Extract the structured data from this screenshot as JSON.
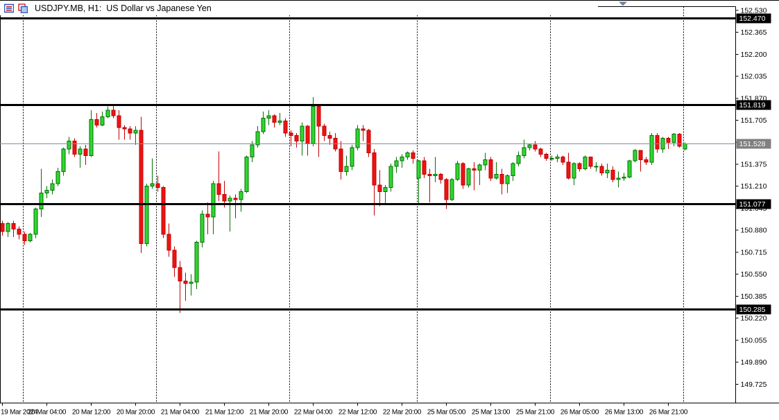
{
  "window": {
    "title": "USDJPY.MB, H1:  US Dollar vs Japanese Yen",
    "title_icons": [
      "indicator-list-icon",
      "templates-icon"
    ],
    "collapse_arrow": "down-triangle"
  },
  "chart_data": {
    "type": "candlestick",
    "symbol": "USDJPY.MB",
    "timeframe": "H1",
    "description": "US Dollar vs Japanese Yen",
    "y_range_visible": [
      149.58,
      152.56
    ],
    "price_axis": {
      "tick_labels": [
        "152.530",
        "152.365",
        "152.200",
        "152.035",
        "151.870",
        "151.705",
        "151.540",
        "151.375",
        "151.210",
        "151.045",
        "150.880",
        "150.715",
        "150.550",
        "150.385",
        "150.220",
        "150.055",
        "149.890",
        "149.725"
      ],
      "badges": [
        {
          "value": "152.470",
          "kind": "level"
        },
        {
          "value": "151.819",
          "kind": "level"
        },
        {
          "value": "151.528",
          "kind": "bid"
        },
        {
          "value": "151.077",
          "kind": "level"
        },
        {
          "value": "150.285",
          "kind": "level"
        }
      ]
    },
    "levels": [
      152.47,
      151.819,
      151.077,
      150.285
    ],
    "current_price": 151.528,
    "time_axis": {
      "labels": [
        {
          "bar": 0,
          "text": "19 Mar 2024"
        },
        {
          "bar": 8,
          "text": "20 Mar 04:00"
        },
        {
          "bar": 16,
          "text": "20 Mar 12:00"
        },
        {
          "bar": 24,
          "text": "20 Mar 20:00"
        },
        {
          "bar": 32,
          "text": "21 Mar 04:00"
        },
        {
          "bar": 40,
          "text": "21 Mar 12:00"
        },
        {
          "bar": 48,
          "text": "21 Mar 20:00"
        },
        {
          "bar": 56,
          "text": "22 Mar 04:00"
        },
        {
          "bar": 64,
          "text": "22 Mar 12:00"
        },
        {
          "bar": 72,
          "text": "22 Mar 20:00"
        },
        {
          "bar": 80,
          "text": "25 Mar 05:00"
        },
        {
          "bar": 88,
          "text": "25 Mar 13:00"
        },
        {
          "bar": 96,
          "text": "25 Mar 21:00"
        },
        {
          "bar": 104,
          "text": "26 Mar 05:00"
        },
        {
          "bar": 112,
          "text": "26 Mar 13:00"
        },
        {
          "bar": 120,
          "text": "26 Mar 21:00"
        }
      ]
    },
    "day_separator_bars": [
      4,
      28,
      52,
      75,
      99,
      123
    ],
    "candles": [
      [
        150.93,
        150.95,
        150.84,
        150.87
      ],
      [
        150.87,
        150.94,
        150.83,
        150.93
      ],
      [
        150.93,
        150.95,
        150.83,
        150.89
      ],
      [
        150.89,
        150.91,
        150.81,
        150.85
      ],
      [
        150.85,
        150.87,
        150.77,
        150.8
      ],
      [
        150.8,
        150.86,
        150.79,
        150.85
      ],
      [
        150.85,
        151.05,
        150.82,
        151.04
      ],
      [
        151.04,
        151.34,
        150.98,
        151.16
      ],
      [
        151.16,
        151.21,
        151.12,
        151.18
      ],
      [
        151.18,
        151.26,
        151.15,
        151.23
      ],
      [
        151.23,
        151.35,
        151.21,
        151.32
      ],
      [
        151.32,
        151.5,
        151.29,
        151.49
      ],
      [
        151.49,
        151.58,
        151.45,
        151.55
      ],
      [
        151.55,
        151.57,
        151.43,
        151.45
      ],
      [
        151.45,
        151.51,
        151.35,
        151.49
      ],
      [
        151.49,
        151.52,
        151.37,
        151.44
      ],
      [
        151.44,
        151.78,
        151.43,
        151.71
      ],
      [
        151.71,
        151.76,
        151.65,
        151.67
      ],
      [
        151.67,
        151.77,
        151.66,
        151.73
      ],
      [
        151.73,
        151.81,
        151.72,
        151.78
      ],
      [
        151.78,
        151.82,
        151.72,
        151.74
      ],
      [
        151.74,
        151.78,
        151.56,
        151.65
      ],
      [
        151.65,
        151.67,
        151.56,
        151.64
      ],
      [
        151.64,
        151.66,
        151.56,
        151.61
      ],
      [
        151.61,
        151.66,
        151.52,
        151.63
      ],
      [
        151.63,
        151.73,
        150.71,
        150.78
      ],
      [
        150.78,
        151.23,
        150.76,
        151.21
      ],
      [
        151.21,
        151.42,
        151.19,
        151.23
      ],
      [
        151.23,
        151.29,
        151.17,
        151.2
      ],
      [
        151.2,
        151.21,
        150.82,
        150.85
      ],
      [
        150.85,
        150.93,
        150.68,
        150.73
      ],
      [
        150.73,
        150.76,
        150.53,
        150.6
      ],
      [
        150.6,
        150.65,
        150.26,
        150.5
      ],
      [
        150.5,
        150.56,
        150.35,
        150.48
      ],
      [
        150.48,
        150.55,
        150.39,
        150.49
      ],
      [
        150.49,
        150.8,
        150.44,
        150.79
      ],
      [
        150.79,
        151.03,
        150.75,
        151.0
      ],
      [
        151.0,
        151.09,
        150.85,
        150.98
      ],
      [
        150.98,
        151.25,
        150.85,
        151.23
      ],
      [
        151.23,
        151.47,
        151.1,
        151.15
      ],
      [
        151.15,
        151.25,
        151.05,
        151.1
      ],
      [
        151.1,
        151.14,
        150.87,
        151.12
      ],
      [
        151.12,
        151.15,
        150.97,
        151.11
      ],
      [
        151.11,
        151.19,
        151.02,
        151.17
      ],
      [
        151.17,
        151.44,
        151.16,
        151.43
      ],
      [
        151.43,
        151.55,
        151.39,
        151.52
      ],
      [
        151.52,
        151.66,
        151.5,
        151.62
      ],
      [
        151.62,
        151.77,
        151.6,
        151.72
      ],
      [
        151.72,
        151.78,
        151.67,
        151.74
      ],
      [
        151.74,
        151.75,
        151.65,
        151.69
      ],
      [
        151.69,
        151.76,
        151.67,
        151.7
      ],
      [
        151.7,
        151.72,
        151.58,
        151.61
      ],
      [
        151.61,
        151.63,
        151.51,
        151.59
      ],
      [
        151.59,
        151.61,
        151.5,
        151.55
      ],
      [
        151.55,
        151.69,
        151.44,
        151.66
      ],
      [
        151.66,
        151.67,
        151.44,
        151.53
      ],
      [
        151.53,
        151.88,
        151.51,
        151.81
      ],
      [
        151.81,
        151.82,
        151.43,
        151.66
      ],
      [
        151.66,
        151.68,
        151.55,
        151.59
      ],
      [
        151.59,
        151.62,
        151.52,
        151.57
      ],
      [
        151.57,
        151.61,
        151.47,
        151.49
      ],
      [
        151.49,
        151.55,
        151.26,
        151.32
      ],
      [
        151.32,
        151.44,
        151.29,
        151.36
      ],
      [
        151.36,
        151.52,
        151.33,
        151.5
      ],
      [
        151.5,
        151.67,
        151.48,
        151.64
      ],
      [
        151.64,
        151.67,
        151.55,
        151.63
      ],
      [
        151.63,
        151.64,
        151.43,
        151.46
      ],
      [
        151.46,
        151.49,
        150.99,
        151.22
      ],
      [
        151.22,
        151.33,
        151.06,
        151.17
      ],
      [
        151.17,
        151.22,
        151.08,
        151.2
      ],
      [
        151.2,
        151.38,
        151.17,
        151.36
      ],
      [
        151.36,
        151.43,
        151.31,
        151.4
      ],
      [
        151.4,
        151.45,
        151.35,
        151.43
      ],
      [
        151.43,
        151.47,
        151.41,
        151.46
      ],
      [
        151.46,
        151.48,
        151.38,
        151.42
      ],
      [
        151.27,
        151.41,
        151.08,
        151.4
      ],
      [
        151.4,
        151.43,
        151.27,
        151.3
      ],
      [
        151.3,
        151.34,
        151.09,
        151.29
      ],
      [
        151.29,
        151.43,
        151.24,
        151.3
      ],
      [
        151.3,
        151.31,
        151.23,
        151.26
      ],
      [
        151.26,
        151.27,
        151.04,
        151.11
      ],
      [
        151.11,
        151.27,
        151.1,
        151.26
      ],
      [
        151.26,
        151.4,
        151.25,
        151.38
      ],
      [
        151.38,
        151.39,
        151.19,
        151.22
      ],
      [
        151.22,
        151.35,
        151.2,
        151.34
      ],
      [
        151.34,
        151.39,
        151.18,
        151.33
      ],
      [
        151.33,
        151.38,
        151.22,
        151.37
      ],
      [
        151.37,
        151.46,
        151.33,
        151.41
      ],
      [
        151.41,
        151.43,
        151.25,
        151.27
      ],
      [
        151.27,
        151.39,
        151.26,
        151.3
      ],
      [
        151.3,
        151.34,
        151.15,
        151.23
      ],
      [
        151.23,
        151.3,
        151.16,
        151.29
      ],
      [
        151.29,
        151.39,
        151.25,
        151.38
      ],
      [
        151.38,
        151.47,
        151.36,
        151.44
      ],
      [
        151.44,
        151.56,
        151.42,
        151.5
      ],
      [
        151.5,
        151.53,
        151.48,
        151.52
      ],
      [
        151.52,
        151.55,
        151.47,
        151.49
      ],
      [
        151.49,
        151.5,
        151.43,
        151.45
      ],
      [
        151.45,
        151.46,
        151.4,
        151.42
      ],
      [
        151.42,
        151.44,
        151.4,
        151.42
      ],
      [
        151.42,
        151.45,
        151.39,
        151.43
      ],
      [
        151.43,
        151.44,
        151.37,
        151.39
      ],
      [
        151.39,
        151.46,
        151.26,
        151.27
      ],
      [
        151.27,
        151.39,
        151.22,
        151.38
      ],
      [
        151.38,
        151.39,
        151.32,
        151.34
      ],
      [
        151.34,
        151.44,
        151.33,
        151.43
      ],
      [
        151.43,
        151.43,
        151.34,
        151.36
      ],
      [
        151.36,
        151.39,
        151.32,
        151.36
      ],
      [
        151.36,
        151.38,
        151.29,
        151.31
      ],
      [
        151.31,
        151.38,
        151.27,
        151.33
      ],
      [
        151.33,
        151.36,
        151.24,
        151.26
      ],
      [
        151.26,
        151.32,
        151.2,
        151.27
      ],
      [
        151.27,
        151.31,
        151.25,
        151.28
      ],
      [
        151.28,
        151.41,
        151.27,
        151.4
      ],
      [
        151.4,
        151.49,
        151.39,
        151.48
      ],
      [
        151.48,
        151.48,
        151.32,
        151.41
      ],
      [
        151.41,
        151.43,
        151.37,
        151.39
      ],
      [
        151.39,
        151.61,
        151.37,
        151.59
      ],
      [
        151.59,
        151.61,
        151.46,
        151.49
      ],
      [
        151.49,
        151.58,
        151.46,
        151.57
      ],
      [
        151.57,
        151.58,
        151.49,
        151.54
      ],
      [
        151.54,
        151.61,
        151.51,
        151.6
      ],
      [
        151.6,
        151.61,
        151.5,
        151.51
      ],
      [
        151.49,
        151.54,
        151.48,
        151.528
      ]
    ],
    "colors": {
      "background": "#FFFFFF",
      "frame": "#000000",
      "bull_fill": "#30D630",
      "bull_stroke": "#007000",
      "bear_fill": "#EC1414",
      "bear_stroke": "#C00000",
      "level_line": "#000000",
      "separator": "#000000",
      "current_price_line": "#7E90A8",
      "badge_level_bg": "#000000",
      "badge_bid_bg": "#808080",
      "badge_text": "#FFFFFF",
      "axis_text": "#000000",
      "arrow": "#70849C"
    }
  }
}
